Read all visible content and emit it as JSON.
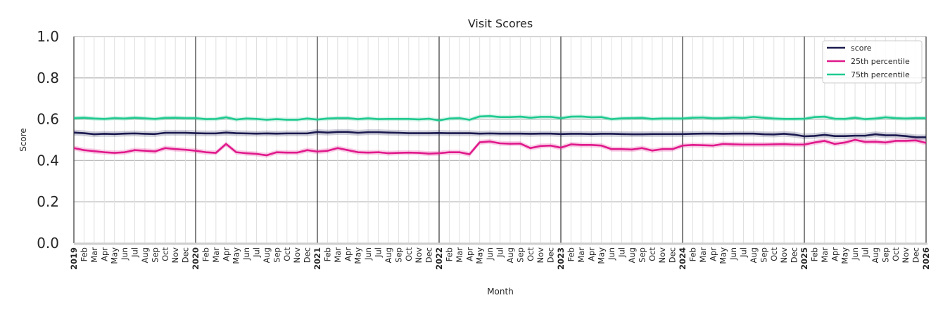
{
  "chart_data": {
    "type": "line",
    "title": "Visit Scores",
    "xlabel": "Month",
    "ylabel": "Score",
    "ylim": [
      0,
      1
    ],
    "yticks": [
      "0.0",
      "0.2",
      "0.4",
      "0.6",
      "0.8",
      "1.0"
    ],
    "grid": true,
    "legend_position": "top-right",
    "x": [
      "2019",
      "Feb",
      "Mar",
      "Apr",
      "May",
      "Jun",
      "Jul",
      "Aug",
      "Sep",
      "Oct",
      "Nov",
      "Dec",
      "2020",
      "Feb",
      "Mar",
      "Apr",
      "May",
      "Jun",
      "Jul",
      "Aug",
      "Sep",
      "Oct",
      "Nov",
      "Dec",
      "2021",
      "Feb",
      "Mar",
      "Apr",
      "May",
      "Jun",
      "Jul",
      "Aug",
      "Sep",
      "Oct",
      "Nov",
      "Dec",
      "2022",
      "Feb",
      "Mar",
      "Apr",
      "May",
      "Jun",
      "Jul",
      "Aug",
      "Sep",
      "Oct",
      "Nov",
      "Dec",
      "2023",
      "Feb",
      "Mar",
      "Apr",
      "May",
      "Jun",
      "Jul",
      "Aug",
      "Sep",
      "Oct",
      "Nov",
      "Dec",
      "2024",
      "Feb",
      "Mar",
      "Apr",
      "May",
      "Jun",
      "Jul",
      "Aug",
      "Sep",
      "Oct",
      "Nov",
      "Dec",
      "2025",
      "Feb",
      "Mar",
      "Apr",
      "May",
      "Jun",
      "Jul",
      "Aug",
      "Sep",
      "Oct",
      "Nov",
      "Dec",
      "2026"
    ],
    "series": [
      {
        "name": "score",
        "color": "#1b1a4f",
        "ci": 0.014,
        "values": [
          0.535,
          0.532,
          0.527,
          0.529,
          0.528,
          0.53,
          0.531,
          0.529,
          0.528,
          0.534,
          0.534,
          0.534,
          0.532,
          0.531,
          0.531,
          0.535,
          0.532,
          0.531,
          0.53,
          0.531,
          0.53,
          0.531,
          0.531,
          0.531,
          0.538,
          0.535,
          0.538,
          0.538,
          0.534,
          0.537,
          0.537,
          0.535,
          0.534,
          0.532,
          0.532,
          0.532,
          0.533,
          0.532,
          0.532,
          0.532,
          0.53,
          0.531,
          0.53,
          0.53,
          0.53,
          0.529,
          0.53,
          0.53,
          0.528,
          0.529,
          0.529,
          0.528,
          0.529,
          0.529,
          0.528,
          0.527,
          0.527,
          0.528,
          0.528,
          0.528,
          0.528,
          0.529,
          0.53,
          0.53,
          0.529,
          0.53,
          0.53,
          0.53,
          0.527,
          0.526,
          0.529,
          0.525,
          0.517,
          0.519,
          0.524,
          0.518,
          0.518,
          0.52,
          0.52,
          0.527,
          0.522,
          0.522,
          0.518,
          0.512,
          0.512
        ]
      },
      {
        "name": "25th percentile",
        "color": "#e0198b",
        "ci": 0.012,
        "values": [
          0.46,
          0.45,
          0.445,
          0.44,
          0.437,
          0.44,
          0.45,
          0.447,
          0.444,
          0.46,
          0.455,
          0.452,
          0.447,
          0.44,
          0.437,
          0.48,
          0.44,
          0.435,
          0.432,
          0.425,
          0.44,
          0.438,
          0.438,
          0.45,
          0.443,
          0.447,
          0.46,
          0.45,
          0.44,
          0.438,
          0.44,
          0.435,
          0.437,
          0.438,
          0.437,
          0.433,
          0.435,
          0.44,
          0.44,
          0.43,
          0.488,
          0.492,
          0.483,
          0.481,
          0.482,
          0.46,
          0.47,
          0.472,
          0.462,
          0.478,
          0.475,
          0.475,
          0.472,
          0.455,
          0.455,
          0.453,
          0.46,
          0.448,
          0.455,
          0.455,
          0.472,
          0.475,
          0.474,
          0.472,
          0.48,
          0.478,
          0.477,
          0.477,
          0.477,
          0.478,
          0.479,
          0.477,
          0.477,
          0.487,
          0.495,
          0.48,
          0.487,
          0.5,
          0.49,
          0.491,
          0.487,
          0.495,
          0.495,
          0.497,
          0.485
        ]
      },
      {
        "name": "75th percentile",
        "color": "#1fca8f",
        "ci": 0.01,
        "values": [
          0.605,
          0.607,
          0.603,
          0.601,
          0.605,
          0.603,
          0.607,
          0.604,
          0.601,
          0.606,
          0.607,
          0.605,
          0.605,
          0.6,
          0.601,
          0.609,
          0.598,
          0.603,
          0.601,
          0.597,
          0.6,
          0.597,
          0.597,
          0.603,
          0.598,
          0.603,
          0.605,
          0.605,
          0.6,
          0.604,
          0.6,
          0.601,
          0.601,
          0.601,
          0.599,
          0.602,
          0.594,
          0.603,
          0.605,
          0.597,
          0.613,
          0.615,
          0.61,
          0.61,
          0.612,
          0.607,
          0.611,
          0.611,
          0.605,
          0.612,
          0.613,
          0.609,
          0.61,
          0.6,
          0.604,
          0.605,
          0.606,
          0.601,
          0.603,
          0.603,
          0.603,
          0.607,
          0.608,
          0.604,
          0.605,
          0.608,
          0.606,
          0.611,
          0.607,
          0.603,
          0.601,
          0.601,
          0.602,
          0.61,
          0.612,
          0.602,
          0.601,
          0.607,
          0.6,
          0.603,
          0.609,
          0.605,
          0.603,
          0.605,
          0.605
        ]
      }
    ]
  }
}
